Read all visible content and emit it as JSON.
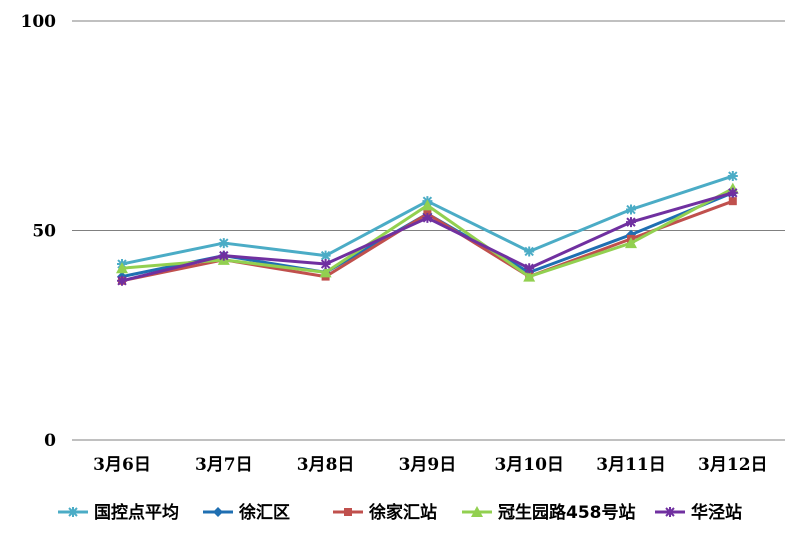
{
  "chart_data": {
    "type": "line",
    "categories": [
      "3月6日",
      "3月7日",
      "3月8日",
      "3月9日",
      "3月10日",
      "3月11日",
      "3月12日"
    ],
    "ylim": [
      0,
      100
    ],
    "yticks": [
      0,
      50,
      100
    ],
    "grid": true,
    "legend_position": "bottom",
    "series": [
      {
        "name": "国控点平均",
        "color": "#4bacc6",
        "marker": "asterisk",
        "values": [
          42,
          47,
          44,
          57,
          45,
          55,
          63
        ]
      },
      {
        "name": "徐汇区",
        "color": "#1f6fb2",
        "marker": "diamond",
        "values": [
          39,
          44,
          40,
          54,
          40,
          49,
          59
        ]
      },
      {
        "name": "徐家汇站",
        "color": "#c0504d",
        "marker": "square",
        "values": [
          38,
          43,
          39,
          54,
          39,
          48,
          57
        ]
      },
      {
        "name": "冠生园路458号站",
        "color": "#92d050",
        "marker": "triangle",
        "values": [
          41,
          43,
          40,
          56,
          39,
          47,
          60
        ]
      },
      {
        "name": "华泾站",
        "color": "#7030a0",
        "marker": "asterisk",
        "values": [
          38,
          44,
          42,
          53,
          41,
          52,
          59
        ]
      }
    ]
  }
}
